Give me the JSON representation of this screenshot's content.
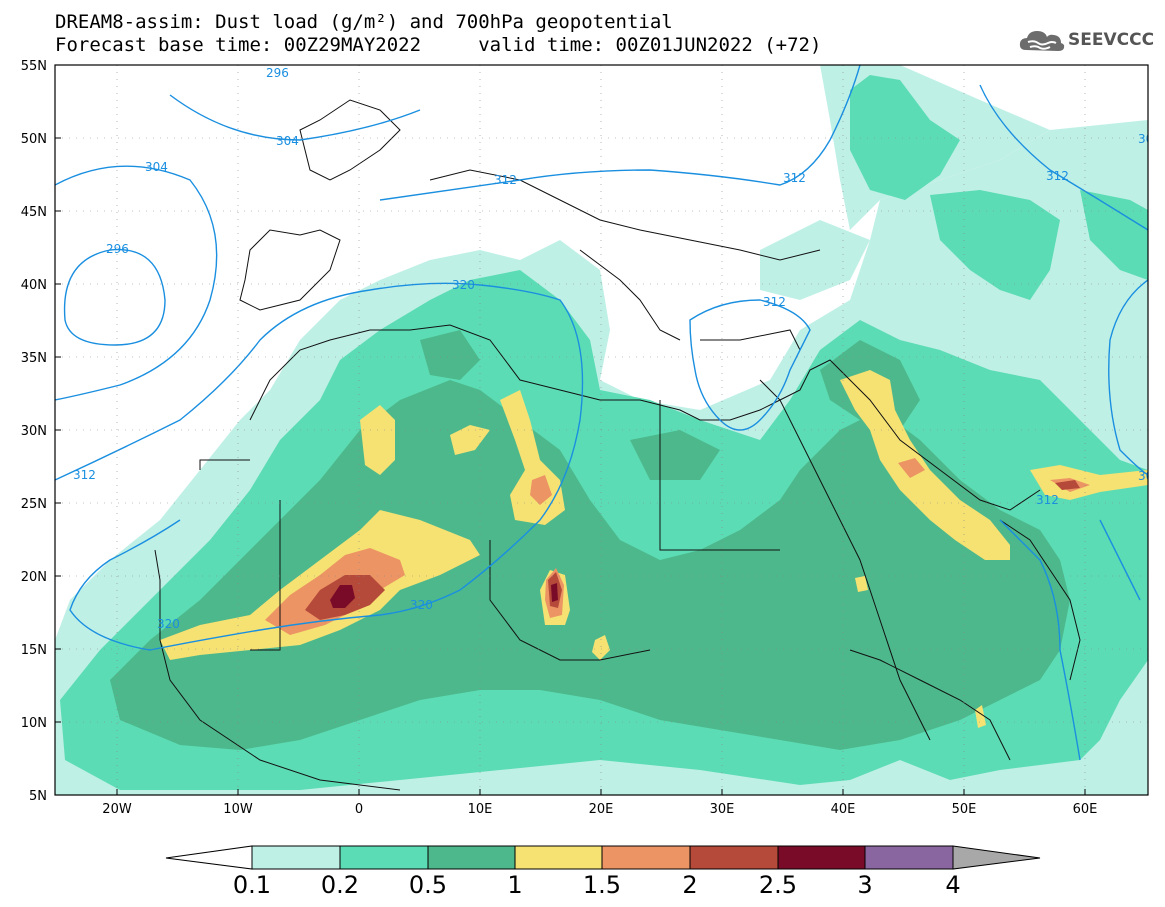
{
  "title": {
    "line1": "DREAM8-assim: Dust load (g/m²) and 700hPa geopotential",
    "line2": "Forecast base time: 00Z29MAY2022     valid time: 00Z01JUN2022 (+72)"
  },
  "logo": {
    "text": "SEEVCCC",
    "icon": "cloud-icon"
  },
  "axes": {
    "lat_labels": [
      "55N",
      "50N",
      "45N",
      "40N",
      "35N",
      "30N",
      "25N",
      "20N",
      "15N",
      "10N",
      "5N"
    ],
    "lon_labels": [
      "20W",
      "10W",
      "0",
      "10E",
      "20E",
      "30E",
      "40E",
      "50E",
      "60E"
    ]
  },
  "contour_labels": {
    "c296": "296",
    "c304": "304",
    "c312": "312",
    "c320": "320",
    "c30": "30"
  },
  "colorbar": {
    "labels": [
      "0.1",
      "0.2",
      "0.5",
      "1",
      "1.5",
      "2",
      "2.5",
      "3",
      "4"
    ],
    "colors": [
      "#ffffff",
      "#bff0e6",
      "#5cdcb4",
      "#4db88c",
      "#f5e273",
      "#ec9463",
      "#b54a3a",
      "#7a0b28",
      "#8a66a0",
      "#a8a8a8"
    ]
  },
  "colors": {
    "contour": "#1a8fe0",
    "coast": "#111111"
  }
}
